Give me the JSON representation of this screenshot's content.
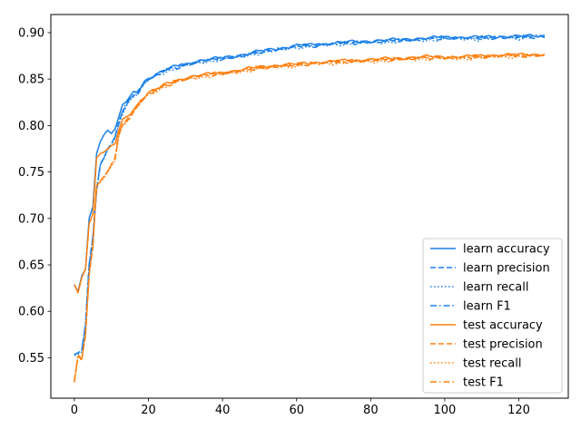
{
  "chart_data": {
    "type": "line",
    "title": "",
    "xlabel": "",
    "ylabel": "",
    "xlim": [
      -6.35,
      133.35
    ],
    "ylim": [
      0.5065,
      0.9195
    ],
    "xticks": [
      0,
      20,
      40,
      60,
      80,
      100,
      120
    ],
    "xtick_labels": [
      "0",
      "20",
      "40",
      "60",
      "80",
      "100",
      "120"
    ],
    "yticks": [
      0.55,
      0.6,
      0.65,
      0.7,
      0.75,
      0.8,
      0.85,
      0.9
    ],
    "ytick_labels": [
      "0.55",
      "0.60",
      "0.65",
      "0.70",
      "0.75",
      "0.80",
      "0.85",
      "0.90"
    ],
    "grid": false,
    "legend_position": "lower right",
    "colors": {
      "learn": "#1f77b4",
      "learn_line": "#1a80e8",
      "test": "#ff7f0e"
    },
    "anchors": {
      "learn_accuracy": [
        [
          0,
          0.628
        ],
        [
          1,
          0.621
        ],
        [
          2,
          0.638
        ],
        [
          3,
          0.645
        ],
        [
          4,
          0.7
        ],
        [
          5,
          0.712
        ],
        [
          6,
          0.77
        ],
        [
          7,
          0.783
        ],
        [
          8,
          0.79
        ],
        [
          9,
          0.795
        ],
        [
          10,
          0.792
        ],
        [
          11,
          0.797
        ],
        [
          12,
          0.808
        ],
        [
          13,
          0.822
        ],
        [
          14,
          0.826
        ],
        [
          15,
          0.83
        ],
        [
          16,
          0.835
        ],
        [
          17,
          0.836
        ],
        [
          18,
          0.842
        ],
        [
          19,
          0.848
        ],
        [
          20,
          0.851
        ],
        [
          22,
          0.855
        ],
        [
          24,
          0.859
        ],
        [
          26,
          0.862
        ],
        [
          28,
          0.864
        ],
        [
          30,
          0.866
        ],
        [
          32,
          0.868
        ],
        [
          34,
          0.87
        ],
        [
          36,
          0.871
        ],
        [
          38,
          0.872
        ],
        [
          40,
          0.873
        ],
        [
          45,
          0.876
        ],
        [
          50,
          0.88
        ],
        [
          55,
          0.883
        ],
        [
          60,
          0.886
        ],
        [
          65,
          0.887
        ],
        [
          70,
          0.889
        ],
        [
          75,
          0.89
        ],
        [
          80,
          0.891
        ],
        [
          85,
          0.892
        ],
        [
          90,
          0.893
        ],
        [
          95,
          0.894
        ],
        [
          100,
          0.895
        ],
        [
          105,
          0.895
        ],
        [
          110,
          0.895
        ],
        [
          115,
          0.896
        ],
        [
          120,
          0.896
        ],
        [
          127,
          0.897
        ]
      ],
      "learn_low": [
        [
          0,
          0.553
        ],
        [
          1,
          0.555
        ],
        [
          2,
          0.558
        ],
        [
          3,
          0.585
        ],
        [
          4,
          0.65
        ],
        [
          5,
          0.68
        ],
        [
          6,
          0.73
        ],
        [
          7,
          0.758
        ],
        [
          8,
          0.765
        ],
        [
          9,
          0.775
        ],
        [
          10,
          0.78
        ],
        [
          11,
          0.787
        ],
        [
          12,
          0.803
        ],
        [
          13,
          0.815
        ],
        [
          14,
          0.822
        ],
        [
          15,
          0.828
        ],
        [
          16,
          0.833
        ],
        [
          17,
          0.835
        ],
        [
          18,
          0.84
        ],
        [
          19,
          0.846
        ],
        [
          20,
          0.85
        ],
        [
          22,
          0.854
        ],
        [
          24,
          0.858
        ],
        [
          26,
          0.861
        ],
        [
          28,
          0.863
        ],
        [
          30,
          0.865
        ],
        [
          32,
          0.867
        ],
        [
          34,
          0.869
        ],
        [
          36,
          0.87
        ],
        [
          38,
          0.871
        ],
        [
          40,
          0.872
        ],
        [
          45,
          0.875
        ],
        [
          50,
          0.879
        ],
        [
          55,
          0.882
        ],
        [
          60,
          0.885
        ],
        [
          65,
          0.886
        ],
        [
          70,
          0.888
        ],
        [
          75,
          0.889
        ],
        [
          80,
          0.89
        ],
        [
          85,
          0.891
        ],
        [
          90,
          0.892
        ],
        [
          95,
          0.893
        ],
        [
          100,
          0.894
        ],
        [
          105,
          0.894
        ],
        [
          110,
          0.894
        ],
        [
          115,
          0.895
        ],
        [
          120,
          0.895
        ],
        [
          127,
          0.896
        ]
      ],
      "test_accuracy": [
        [
          0,
          0.629
        ],
        [
          1,
          0.62
        ],
        [
          2,
          0.636
        ],
        [
          3,
          0.645
        ],
        [
          4,
          0.695
        ],
        [
          5,
          0.705
        ],
        [
          6,
          0.765
        ],
        [
          7,
          0.77
        ],
        [
          8,
          0.772
        ],
        [
          9,
          0.775
        ],
        [
          10,
          0.778
        ],
        [
          11,
          0.78
        ],
        [
          12,
          0.795
        ],
        [
          13,
          0.805
        ],
        [
          14,
          0.808
        ],
        [
          15,
          0.812
        ],
        [
          16,
          0.818
        ],
        [
          17,
          0.822
        ],
        [
          18,
          0.828
        ],
        [
          19,
          0.832
        ],
        [
          20,
          0.836
        ],
        [
          22,
          0.839
        ],
        [
          24,
          0.843
        ],
        [
          26,
          0.846
        ],
        [
          28,
          0.849
        ],
        [
          30,
          0.851
        ],
        [
          32,
          0.853
        ],
        [
          34,
          0.854
        ],
        [
          36,
          0.855
        ],
        [
          38,
          0.856
        ],
        [
          40,
          0.857
        ],
        [
          45,
          0.86
        ],
        [
          50,
          0.863
        ],
        [
          55,
          0.865
        ],
        [
          60,
          0.866
        ],
        [
          65,
          0.868
        ],
        [
          70,
          0.869
        ],
        [
          75,
          0.87
        ],
        [
          80,
          0.871
        ],
        [
          85,
          0.872
        ],
        [
          90,
          0.873
        ],
        [
          95,
          0.874
        ],
        [
          100,
          0.874
        ],
        [
          105,
          0.874
        ],
        [
          110,
          0.875
        ],
        [
          115,
          0.876
        ],
        [
          120,
          0.876
        ],
        [
          127,
          0.877
        ]
      ],
      "test_low": [
        [
          0,
          0.525
        ],
        [
          1,
          0.552
        ],
        [
          2,
          0.548
        ],
        [
          3,
          0.575
        ],
        [
          4,
          0.64
        ],
        [
          5,
          0.67
        ],
        [
          6,
          0.735
        ],
        [
          7,
          0.74
        ],
        [
          8,
          0.745
        ],
        [
          9,
          0.75
        ],
        [
          10,
          0.758
        ],
        [
          11,
          0.765
        ],
        [
          12,
          0.79
        ],
        [
          13,
          0.8
        ],
        [
          14,
          0.805
        ],
        [
          15,
          0.81
        ],
        [
          16,
          0.815
        ],
        [
          17,
          0.82
        ],
        [
          18,
          0.826
        ],
        [
          19,
          0.83
        ],
        [
          20,
          0.834
        ],
        [
          22,
          0.838
        ],
        [
          24,
          0.842
        ],
        [
          26,
          0.845
        ],
        [
          28,
          0.848
        ],
        [
          30,
          0.85
        ],
        [
          32,
          0.852
        ],
        [
          34,
          0.853
        ],
        [
          36,
          0.854
        ],
        [
          38,
          0.855
        ],
        [
          40,
          0.856
        ],
        [
          45,
          0.859
        ],
        [
          50,
          0.862
        ],
        [
          55,
          0.864
        ],
        [
          60,
          0.865
        ],
        [
          65,
          0.867
        ],
        [
          70,
          0.868
        ],
        [
          75,
          0.869
        ],
        [
          80,
          0.87
        ],
        [
          85,
          0.871
        ],
        [
          90,
          0.872
        ],
        [
          95,
          0.873
        ],
        [
          100,
          0.873
        ],
        [
          105,
          0.873
        ],
        [
          110,
          0.874
        ],
        [
          115,
          0.875
        ],
        [
          120,
          0.875
        ],
        [
          127,
          0.876
        ]
      ]
    },
    "series": [
      {
        "name": "learn accuracy",
        "group": "learn",
        "style": "solid",
        "from": "learn_accuracy",
        "offset": 0.0
      },
      {
        "name": "learn precision",
        "group": "learn",
        "style": "dashed",
        "from": "learn_low",
        "offset": 0.0
      },
      {
        "name": "learn recall",
        "group": "learn",
        "style": "dotted",
        "from": "learn_low",
        "offset": -0.001
      },
      {
        "name": "learn F1",
        "group": "learn",
        "style": "dashdot",
        "from": "learn_low",
        "offset": 0.0005
      },
      {
        "name": "test accuracy",
        "group": "test",
        "style": "solid",
        "from": "test_accuracy",
        "offset": 0.0
      },
      {
        "name": "test precision",
        "group": "test",
        "style": "dashed",
        "from": "test_low",
        "offset": 0.0
      },
      {
        "name": "test recall",
        "group": "test",
        "style": "dotted",
        "from": "test_low",
        "offset": -0.001
      },
      {
        "name": "test F1",
        "group": "test",
        "style": "dashdot",
        "from": "test_low",
        "offset": 0.0005
      }
    ]
  }
}
